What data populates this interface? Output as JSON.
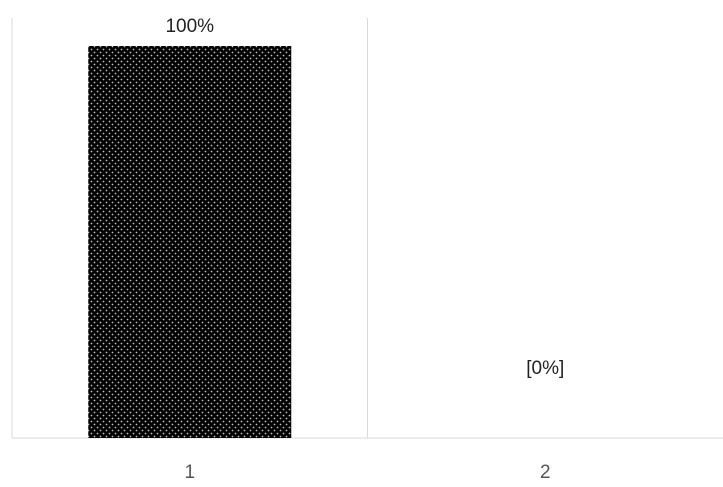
{
  "chart_data": {
    "type": "bar",
    "categories": [
      "1",
      "2"
    ],
    "values": [
      100,
      0
    ],
    "data_labels": [
      "100%",
      "[0%]"
    ],
    "ylim": [
      0,
      100
    ],
    "title": "",
    "xlabel": "",
    "ylabel": "",
    "grid": false,
    "legend": "none",
    "bar_fill": "#000000",
    "bar_pattern_dot": "#bdbdbd",
    "axis_color": "#d9d9d9"
  }
}
